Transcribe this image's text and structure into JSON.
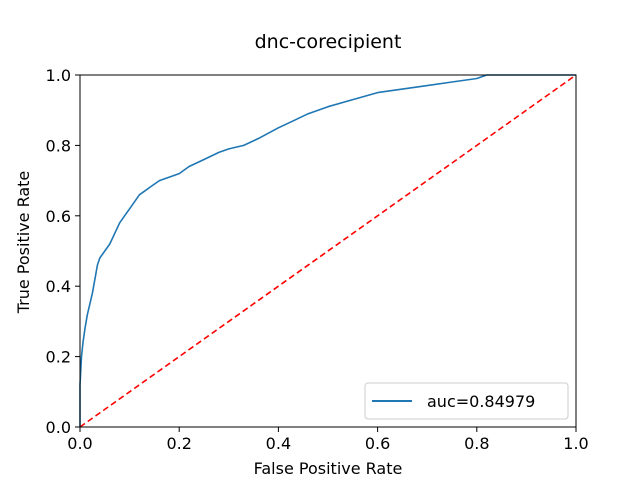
{
  "chart_data": {
    "type": "line",
    "title": "dnc-corecipient",
    "xlabel": "False Positive Rate",
    "ylabel": "True Positive Rate",
    "xlim": [
      0.0,
      1.0
    ],
    "ylim": [
      0.0,
      1.0
    ],
    "xticks": [
      "0.0",
      "0.2",
      "0.4",
      "0.6",
      "0.8",
      "1.0"
    ],
    "yticks": [
      "0.0",
      "0.2",
      "0.4",
      "0.6",
      "0.8",
      "1.0"
    ],
    "grid": false,
    "legend_position": "lower-right",
    "series": [
      {
        "name": "auc=0.84979",
        "color": "#1f77b4",
        "style": "solid",
        "x": [
          0.0,
          0.0,
          0.003,
          0.006,
          0.01,
          0.015,
          0.02,
          0.025,
          0.03,
          0.035,
          0.04,
          0.05,
          0.06,
          0.07,
          0.08,
          0.09,
          0.1,
          0.11,
          0.12,
          0.13,
          0.14,
          0.15,
          0.16,
          0.18,
          0.2,
          0.22,
          0.25,
          0.28,
          0.3,
          0.33,
          0.36,
          0.4,
          0.43,
          0.46,
          0.5,
          0.55,
          0.6,
          0.65,
          0.7,
          0.75,
          0.8,
          0.82,
          0.85,
          0.9,
          0.95,
          1.0
        ],
        "y": [
          0.0,
          0.12,
          0.2,
          0.24,
          0.28,
          0.32,
          0.35,
          0.38,
          0.42,
          0.46,
          0.48,
          0.5,
          0.52,
          0.55,
          0.58,
          0.6,
          0.62,
          0.64,
          0.66,
          0.67,
          0.68,
          0.69,
          0.7,
          0.71,
          0.72,
          0.74,
          0.76,
          0.78,
          0.79,
          0.8,
          0.82,
          0.85,
          0.87,
          0.89,
          0.91,
          0.93,
          0.95,
          0.96,
          0.97,
          0.98,
          0.99,
          1.0,
          1.0,
          1.0,
          1.0,
          1.0
        ]
      },
      {
        "color": "#ff0000",
        "style": "dashed",
        "x": [
          0.0,
          1.0
        ],
        "y": [
          0.0,
          1.0
        ]
      }
    ]
  }
}
